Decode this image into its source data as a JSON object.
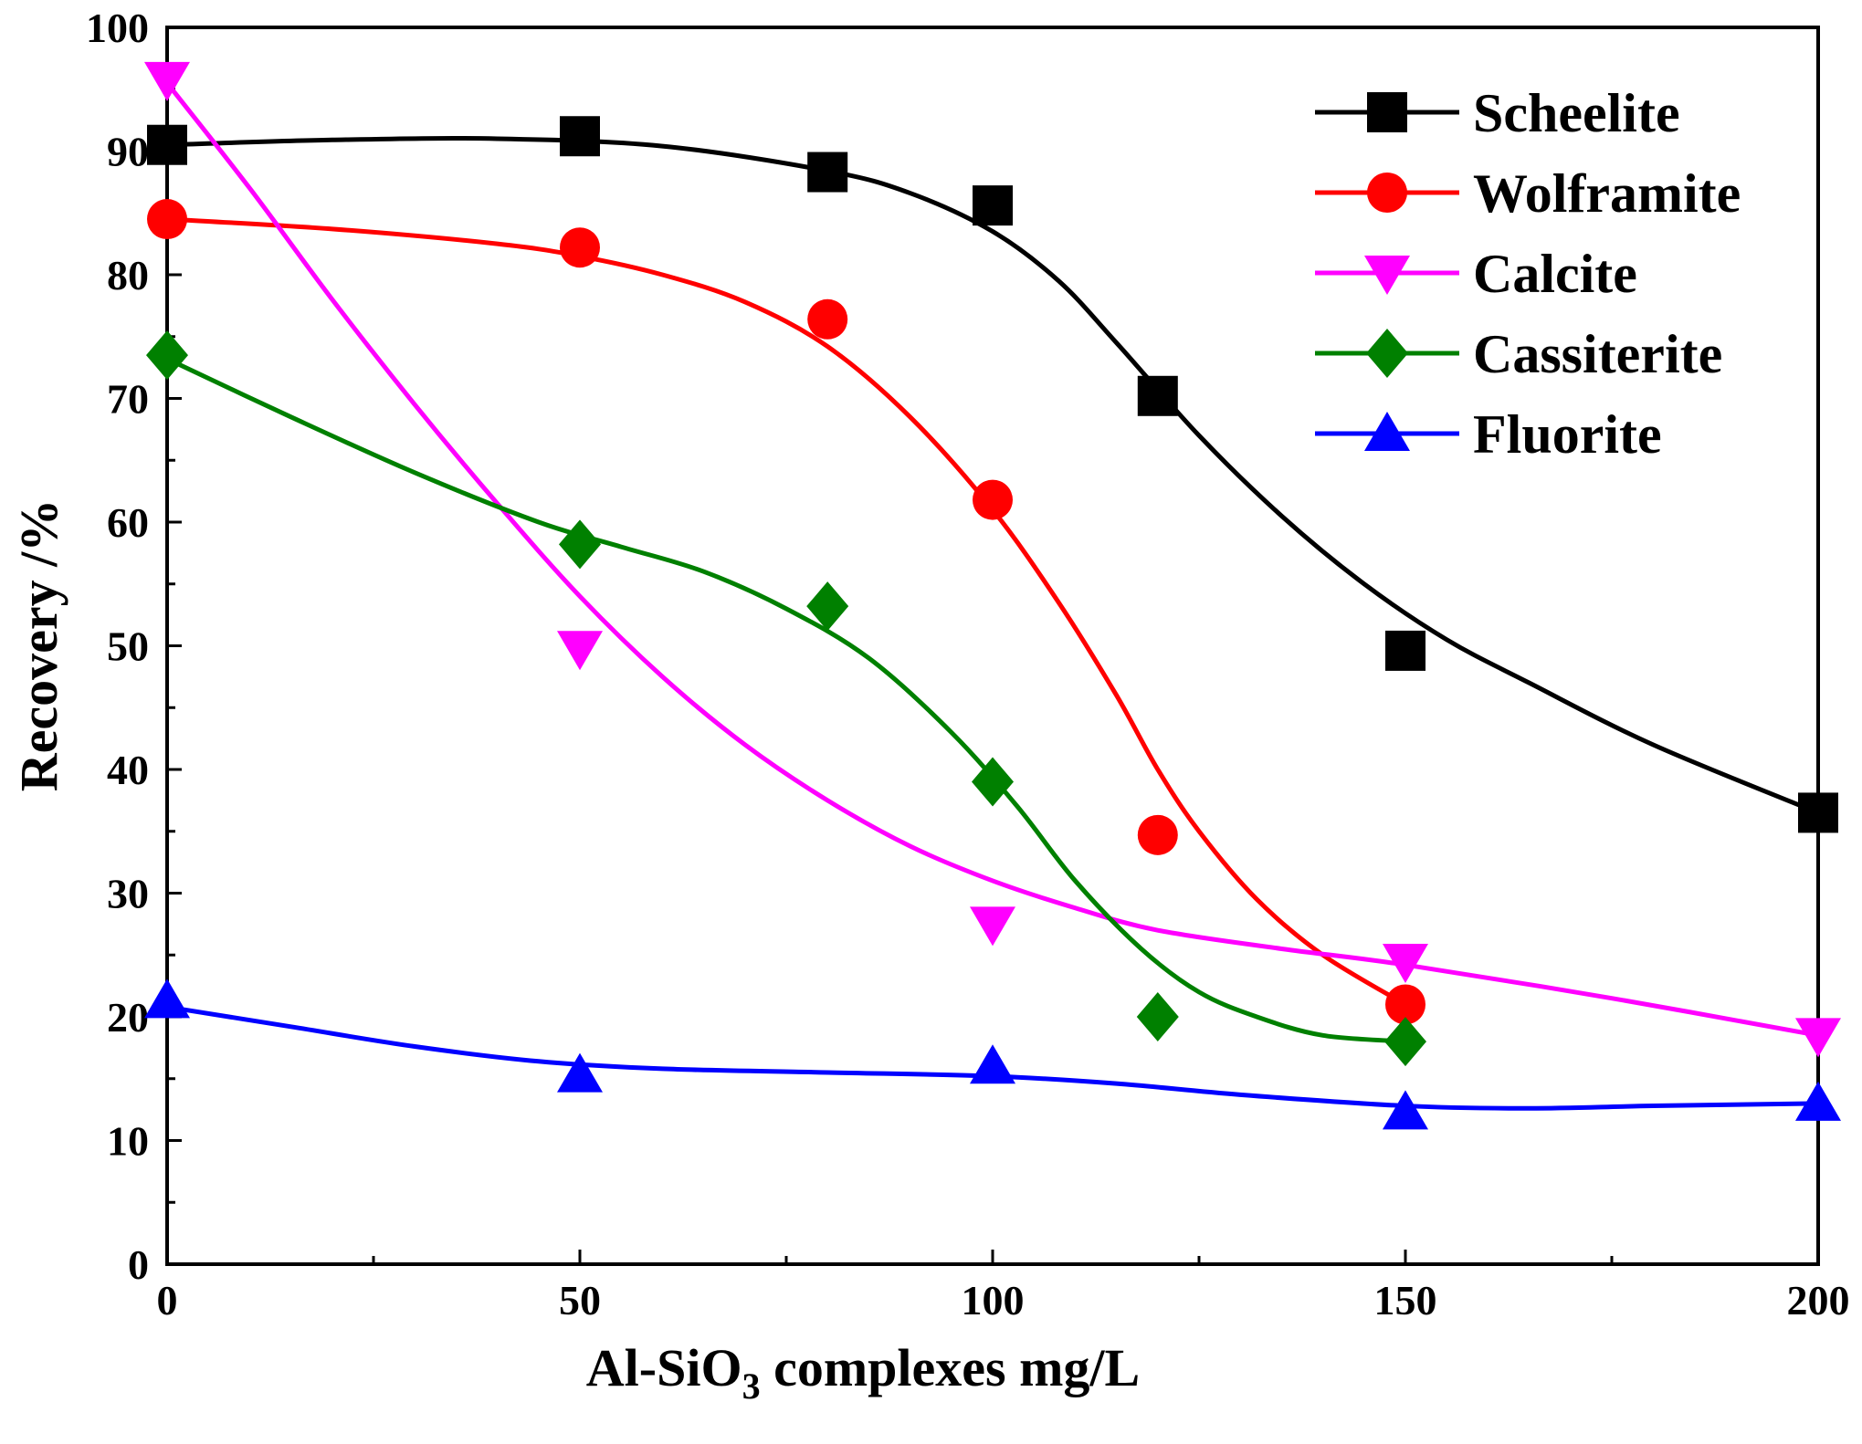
{
  "chart_data": {
    "type": "line",
    "title": "",
    "xlabel": "Al-SiO",
    "xlabel_subscript": "3",
    "xlabel_suffix": " complexes mg/L",
    "ylabel": "Recovery /%",
    "xlim": [
      0,
      200
    ],
    "ylim": [
      0,
      100
    ],
    "x_ticks": [
      0,
      50,
      100,
      150,
      200
    ],
    "y_ticks": [
      0,
      10,
      20,
      30,
      40,
      50,
      60,
      70,
      80,
      90,
      100
    ],
    "grid": false,
    "legend_position": "top-right",
    "series": [
      {
        "name": "Scheelite",
        "color": "#000000",
        "marker": "square",
        "x": [
          0,
          50,
          80,
          100,
          120,
          150,
          200
        ],
        "y": [
          90.5,
          91.2,
          88.3,
          85.6,
          70.2,
          49.6,
          36.5
        ],
        "fit": [
          [
            0,
            90.5
          ],
          [
            20,
            90.9
          ],
          [
            40,
            91.0
          ],
          [
            60,
            90.4
          ],
          [
            80,
            88.4
          ],
          [
            90,
            86.6
          ],
          [
            100,
            83.5
          ],
          [
            108,
            79.5
          ],
          [
            115,
            74.5
          ],
          [
            125,
            67.0
          ],
          [
            135,
            60.5
          ],
          [
            145,
            55.0
          ],
          [
            155,
            50.5
          ],
          [
            165,
            47.0
          ],
          [
            180,
            42.0
          ],
          [
            200,
            36.5
          ]
        ]
      },
      {
        "name": "Wolframite",
        "color": "#ff0000",
        "marker": "circle",
        "x": [
          0,
          50,
          80,
          100,
          120,
          150
        ],
        "y": [
          84.5,
          82.2,
          76.4,
          61.8,
          34.7,
          21.0
        ],
        "fit": [
          [
            0,
            84.5
          ],
          [
            20,
            83.7
          ],
          [
            40,
            82.5
          ],
          [
            50,
            81.5
          ],
          [
            60,
            80.0
          ],
          [
            70,
            77.8
          ],
          [
            80,
            74.2
          ],
          [
            90,
            68.5
          ],
          [
            100,
            61.0
          ],
          [
            108,
            53.5
          ],
          [
            115,
            46.0
          ],
          [
            120,
            40.0
          ],
          [
            125,
            35.0
          ],
          [
            132,
            29.5
          ],
          [
            140,
            25.0
          ],
          [
            150,
            21.0
          ]
        ]
      },
      {
        "name": "Calcite",
        "color": "#ff00ff",
        "marker": "triangle-down",
        "x": [
          0,
          50,
          100,
          150,
          200
        ],
        "y": [
          95.8,
          49.8,
          27.5,
          24.5,
          18.5
        ],
        "fit": [
          [
            0,
            95.5
          ],
          [
            10,
            87.0
          ],
          [
            20,
            78.0
          ],
          [
            30,
            69.5
          ],
          [
            40,
            61.5
          ],
          [
            50,
            54.0
          ],
          [
            60,
            47.5
          ],
          [
            70,
            42.0
          ],
          [
            80,
            37.5
          ],
          [
            90,
            33.8
          ],
          [
            100,
            31.0
          ],
          [
            110,
            28.8
          ],
          [
            120,
            27.0
          ],
          [
            135,
            25.5
          ],
          [
            150,
            24.2
          ],
          [
            175,
            21.5
          ],
          [
            200,
            18.5
          ]
        ]
      },
      {
        "name": "Cassiterite",
        "color": "#008000",
        "marker": "diamond",
        "x": [
          0,
          50,
          80,
          100,
          120,
          150
        ],
        "y": [
          73.5,
          58.2,
          53.2,
          39.0,
          20.0,
          18.0
        ],
        "fit": [
          [
            0,
            73.2
          ],
          [
            15,
            68.5
          ],
          [
            30,
            64.0
          ],
          [
            45,
            60.0
          ],
          [
            55,
            58.0
          ],
          [
            65,
            56.0
          ],
          [
            75,
            53.0
          ],
          [
            85,
            49.0
          ],
          [
            95,
            43.0
          ],
          [
            103,
            37.0
          ],
          [
            110,
            31.0
          ],
          [
            118,
            25.5
          ],
          [
            125,
            22.0
          ],
          [
            132,
            20.0
          ],
          [
            140,
            18.5
          ],
          [
            150,
            18.0
          ]
        ]
      },
      {
        "name": "Fluorite",
        "color": "#0000ff",
        "marker": "triangle-up",
        "x": [
          0,
          50,
          100,
          150,
          200
        ],
        "y": [
          21.3,
          15.3,
          16.0,
          12.3,
          13.0
        ],
        "fit": [
          [
            0,
            20.8
          ],
          [
            15,
            19.2
          ],
          [
            30,
            17.6
          ],
          [
            45,
            16.4
          ],
          [
            60,
            15.8
          ],
          [
            80,
            15.5
          ],
          [
            100,
            15.2
          ],
          [
            115,
            14.6
          ],
          [
            130,
            13.7
          ],
          [
            150,
            12.8
          ],
          [
            165,
            12.6
          ],
          [
            180,
            12.8
          ],
          [
            200,
            13.0
          ]
        ]
      }
    ]
  }
}
